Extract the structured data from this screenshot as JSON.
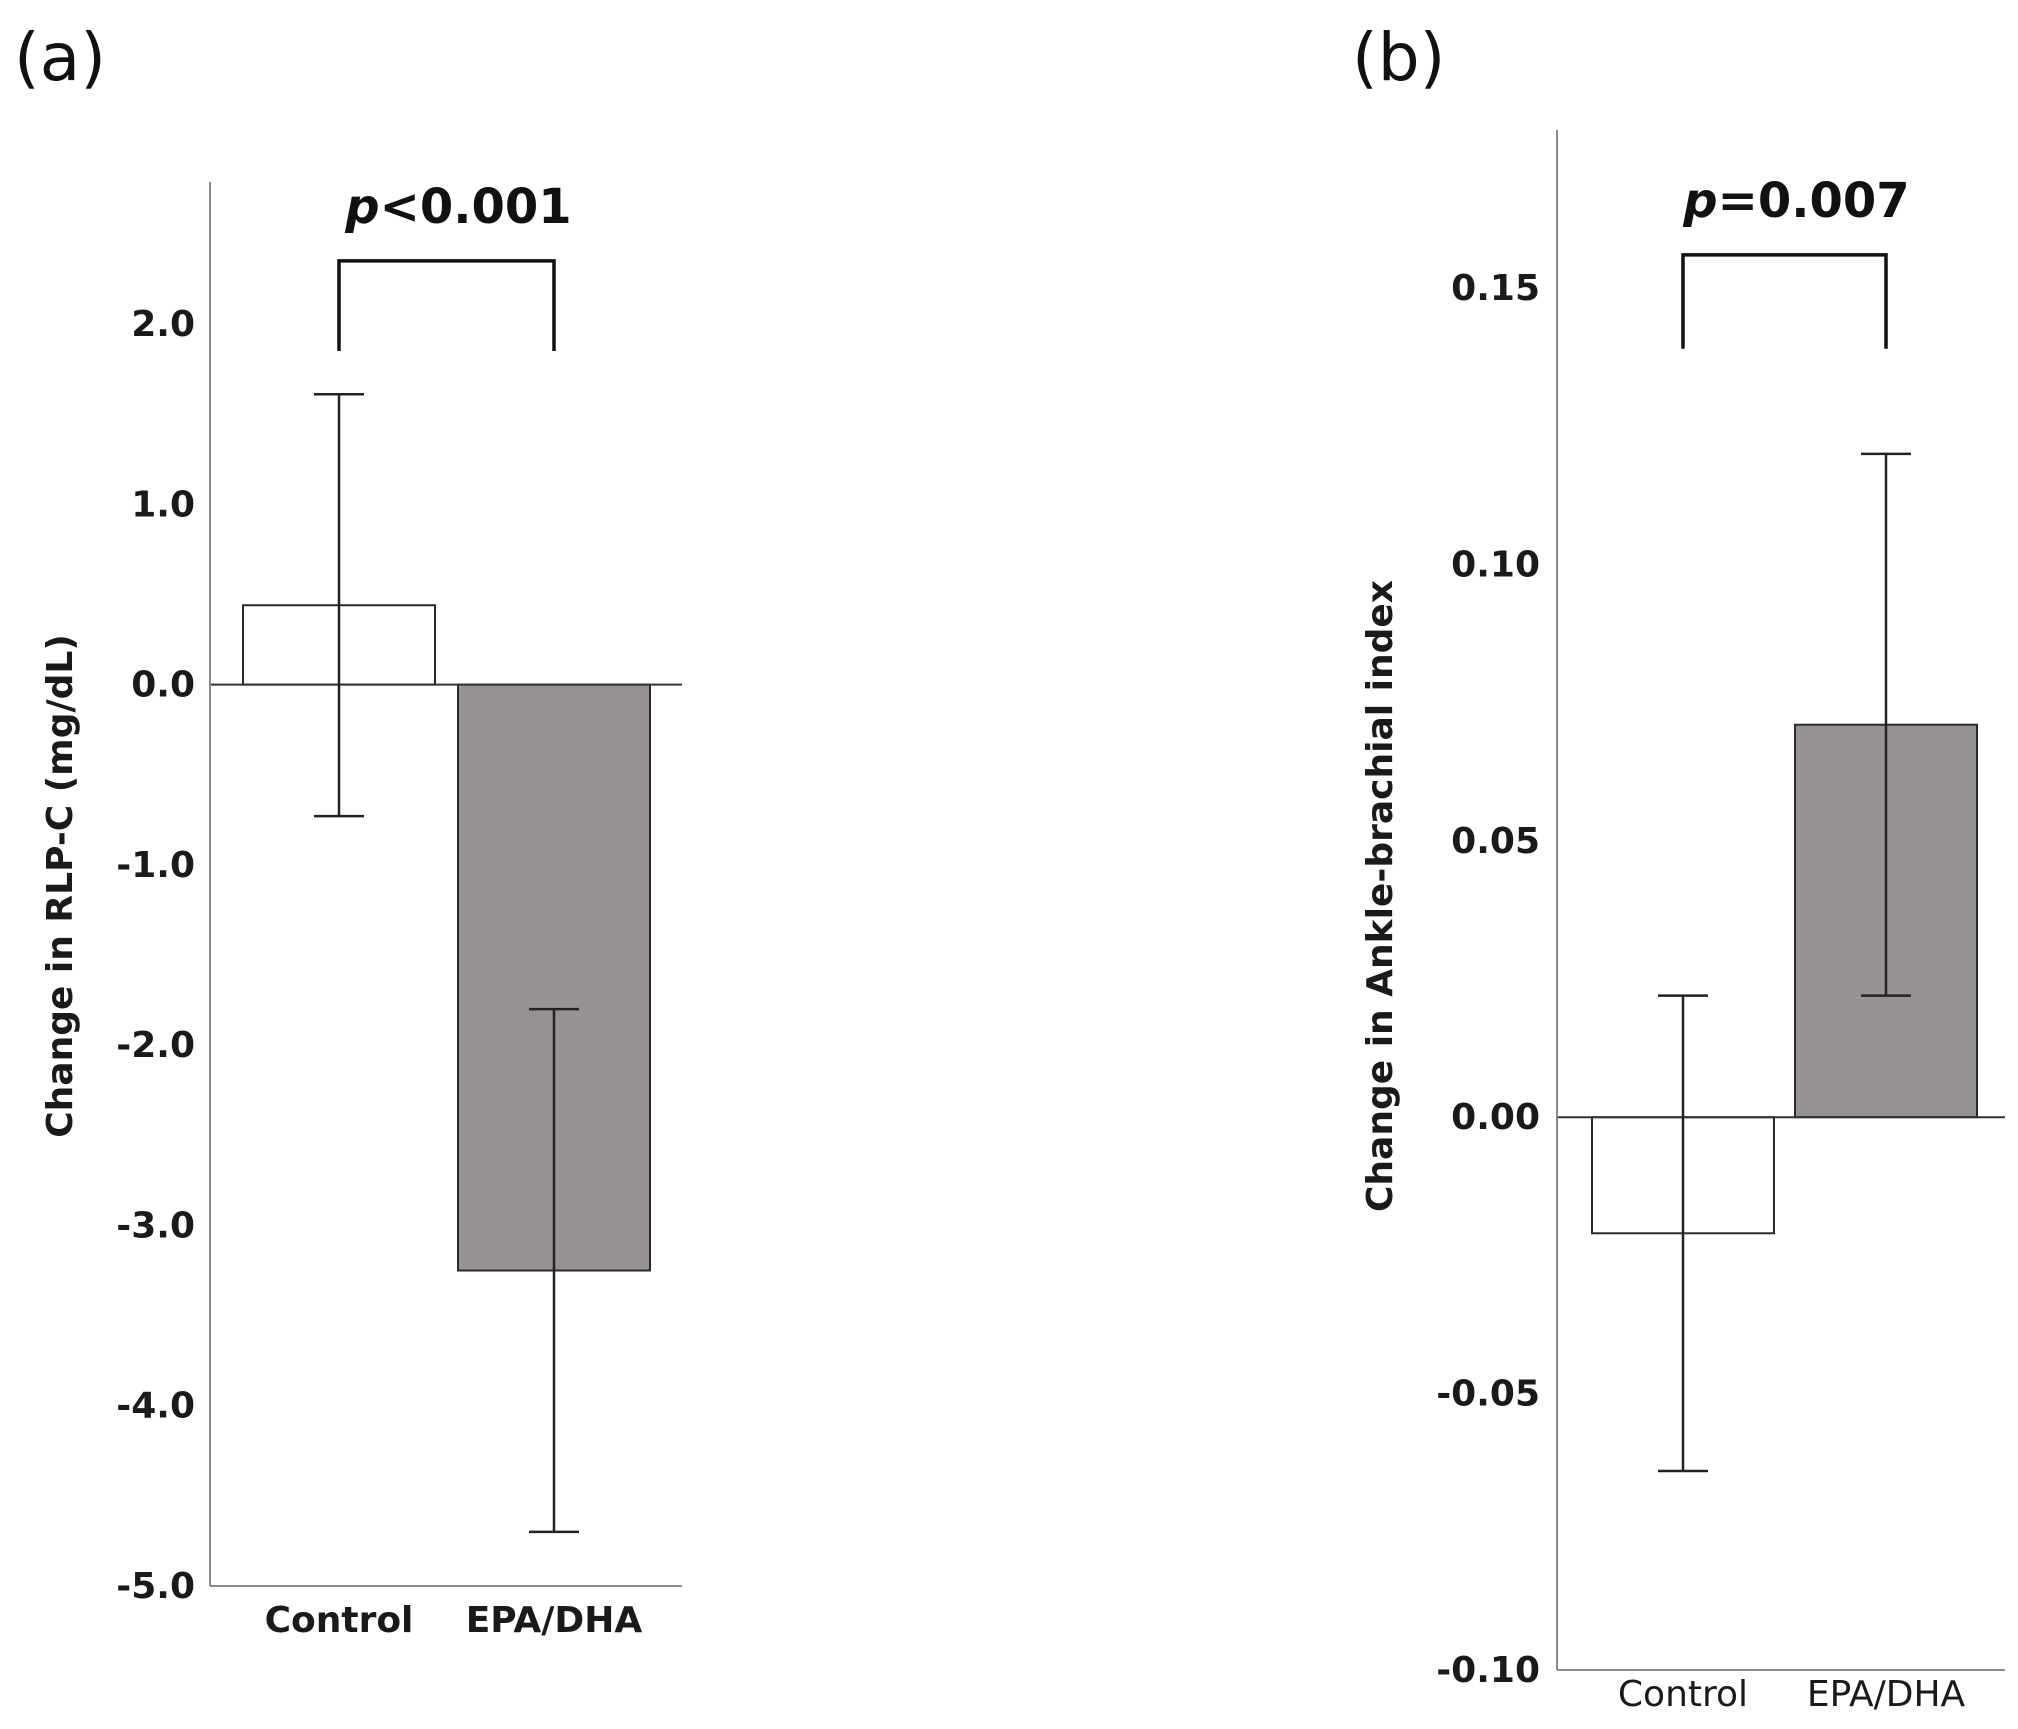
{
  "chart_data": [
    {
      "type": "bar",
      "panel_label": "(a)",
      "title": "",
      "xlabel": "",
      "ylabel": "Change in RLP-C (mg/dL)",
      "ylim": [
        -5.0,
        2.7
      ],
      "yticks": [
        2.0,
        1.0,
        0.0,
        -1.0,
        -2.0,
        -3.0,
        -4.0,
        -5.0
      ],
      "ytick_labels": [
        "2.0",
        "1.0",
        "0.0",
        "-1.0",
        "-2.0",
        "-3.0",
        "-4.0",
        "-5.0"
      ],
      "categories": [
        "Control",
        "EPA/DHA"
      ],
      "values": [
        0.44,
        -3.25
      ],
      "error_low": [
        -0.73,
        -4.7
      ],
      "error_high": [
        1.61,
        -1.8
      ],
      "bar_colors": [
        "#ffffff",
        "#979292"
      ],
      "significance": {
        "p_symbol": "p",
        "p_rest": "<0.001",
        "bracket_top": 2.35,
        "bracket_bottom": 1.85
      }
    },
    {
      "type": "bar",
      "panel_label": "(b)",
      "title": "",
      "xlabel": "",
      "ylabel": "Change in Ankle-brachial index",
      "ylim": [
        -0.1,
        0.18
      ],
      "yticks": [
        0.15,
        0.1,
        0.05,
        0.0,
        -0.05,
        -0.1
      ],
      "ytick_labels": [
        "0.15",
        "0.10",
        "0.05",
        "0.00",
        "-0.05",
        "-0.10"
      ],
      "categories": [
        "Control",
        "EPA/DHA"
      ],
      "values": [
        -0.021,
        0.071
      ],
      "error_low": [
        -0.064,
        0.022
      ],
      "error_high": [
        0.022,
        0.12
      ],
      "bar_colors": [
        "#ffffff",
        "#979292"
      ],
      "significance": {
        "p_symbol": "p",
        "p_rest": "=0.007",
        "bracket_top": 0.156,
        "bracket_bottom": 0.139
      }
    }
  ]
}
